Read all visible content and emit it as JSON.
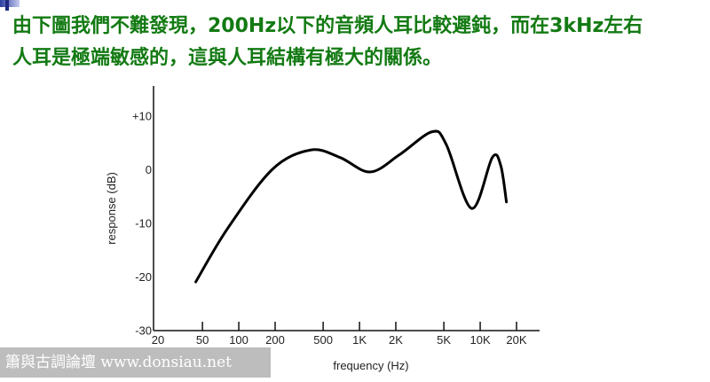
{
  "caption": {
    "line1": "由下圖我們不難發現，200Hz以下的音頻人耳比較遲鈍，而在3kHz左右",
    "line2": "人耳是極端敏感的，這與人耳結構有極大的關係。",
    "color": "#137a13"
  },
  "watermark": "簫與古調論壇 www.donsiau.net",
  "chart_data": {
    "type": "line",
    "xlabel": "frequency (Hz)",
    "ylabel": "response (dB)",
    "x_scale": "log",
    "xlim": [
      20,
      20000
    ],
    "ylim": [
      -30,
      15
    ],
    "x_ticks": [
      {
        "value": 20,
        "label": "20"
      },
      {
        "value": 50,
        "label": "50"
      },
      {
        "value": 100,
        "label": "100"
      },
      {
        "value": 200,
        "label": "200"
      },
      {
        "value": 500,
        "label": "500"
      },
      {
        "value": 1000,
        "label": "1K"
      },
      {
        "value": 2000,
        "label": "2K"
      },
      {
        "value": 5000,
        "label": "5K"
      },
      {
        "value": 10000,
        "label": "10K"
      },
      {
        "value": 20000,
        "label": "20K"
      }
    ],
    "y_ticks": [
      {
        "value": 10,
        "label": "+10"
      },
      {
        "value": 0,
        "label": "0"
      },
      {
        "value": -10,
        "label": "-10"
      },
      {
        "value": -20,
        "label": "-20"
      },
      {
        "value": -30,
        "label": "-30"
      }
    ],
    "grid": false,
    "series": [
      {
        "x": [
          44,
          81,
          190,
          394,
          690,
          1225,
          2140,
          4000,
          5240,
          8500,
          12600,
          14800,
          16500
        ],
        "y": [
          -21,
          -11,
          0,
          3.6,
          2.2,
          -0.5,
          2.7,
          7,
          4.6,
          -7.3,
          2.2,
          0.7,
          -6.1
        ],
        "color": "#000000"
      }
    ]
  }
}
